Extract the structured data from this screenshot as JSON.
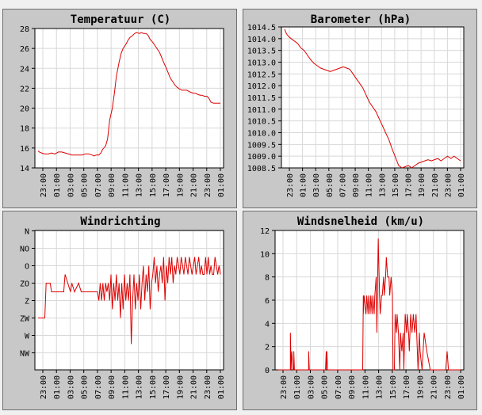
{
  "chart_data": [
    {
      "type": "line",
      "title": "Temperatuur (C)",
      "xticks": [
        "23:00",
        "01:00",
        "03:00",
        "05:00",
        "07:00",
        "09:00",
        "11:00",
        "13:00",
        "15:00",
        "17:00",
        "19:00",
        "21:00",
        "23:00",
        "01:00"
      ],
      "yticks": [
        "14",
        "16",
        "18",
        "20",
        "22",
        "24",
        "26",
        "28"
      ],
      "ylim": [
        14,
        28
      ],
      "grid": true,
      "series": [
        {
          "color": "#dd0000",
          "x": [
            0,
            0.2,
            0.5,
            1,
            1.5,
            2,
            2.5,
            3,
            3.5,
            4,
            4.5,
            5,
            5.5,
            6,
            6.5,
            7,
            7.5,
            8,
            8.3,
            8.6,
            9,
            9.3,
            9.6,
            10,
            10.3,
            10.6,
            11,
            11.3,
            11.6,
            12,
            12.3,
            12.6,
            13,
            13.3,
            13.6,
            14,
            14.3,
            14.6,
            15,
            15.3,
            15.6,
            16,
            16.3,
            16.6,
            17,
            17.3,
            17.6,
            18,
            18.3,
            18.6,
            19,
            19.3,
            19.6,
            20,
            20.3,
            20.6,
            21,
            21.3,
            21.6,
            22,
            22.3,
            22.6,
            23,
            23.3,
            23.6,
            24,
            24.3,
            24.6,
            25,
            25.3,
            25.6,
            26,
            26.3,
            26.6,
            27
          ],
          "values": [
            15.7,
            15.6,
            15.5,
            15.4,
            15.4,
            15.5,
            15.4,
            15.6,
            15.6,
            15.5,
            15.4,
            15.3,
            15.3,
            15.3,
            15.3,
            15.4,
            15.4,
            15.3,
            15.2,
            15.3,
            15.3,
            15.5,
            15.9,
            16.2,
            16.9,
            18.8,
            20.0,
            21.5,
            23.2,
            24.6,
            25.5,
            26.0,
            26.4,
            26.8,
            27.1,
            27.3,
            27.5,
            27.6,
            27.5,
            27.6,
            27.5,
            27.5,
            27.3,
            26.9,
            26.6,
            26.3,
            26.0,
            25.6,
            25.1,
            24.6,
            24.0,
            23.5,
            23.0,
            22.6,
            22.3,
            22.1,
            21.9,
            21.8,
            21.8,
            21.8,
            21.7,
            21.6,
            21.5,
            21.5,
            21.4,
            21.3,
            21.3,
            21.2,
            21.2,
            21.0,
            20.6,
            20.5,
            20.5,
            20.5,
            20.5
          ]
        }
      ]
    },
    {
      "type": "line",
      "title": "Barometer (hPa)",
      "xticks": [
        "23:00",
        "01:00",
        "03:00",
        "05:00",
        "07:00",
        "09:00",
        "11:00",
        "13:00",
        "15:00",
        "17:00",
        "19:00",
        "21:00",
        "23:00",
        "01:00"
      ],
      "yticks": [
        "1008.5",
        "1009.0",
        "1009.5",
        "1010.0",
        "1010.5",
        "1011.0",
        "1011.5",
        "1012.0",
        "1012.5",
        "1013.0",
        "1013.5",
        "1014.0",
        "1014.5"
      ],
      "ylim": [
        1008.5,
        1014.5
      ],
      "grid": true,
      "series": [
        {
          "color": "#dd0000",
          "x": [
            0,
            0.3,
            0.6,
            1,
            1.5,
            2,
            2.5,
            3,
            3.5,
            4,
            4.5,
            5,
            5.5,
            6,
            6.5,
            7,
            7.5,
            8,
            8.5,
            9,
            9.5,
            10,
            10.5,
            11,
            11.5,
            12,
            12.5,
            13,
            13.5,
            14,
            14.5,
            15,
            15.5,
            16,
            16.5,
            17,
            17.5,
            18,
            18.5,
            19,
            19.5,
            20,
            20.5,
            21,
            21.5,
            22,
            22.5,
            23,
            23.5,
            24,
            24.5,
            25,
            25.5,
            26,
            26.5,
            27
          ],
          "values": [
            1014.4,
            1014.2,
            1014.1,
            1014.0,
            1013.9,
            1013.8,
            1013.6,
            1013.5,
            1013.3,
            1013.1,
            1012.95,
            1012.85,
            1012.75,
            1012.7,
            1012.65,
            1012.6,
            1012.65,
            1012.7,
            1012.75,
            1012.8,
            1012.75,
            1012.7,
            1012.5,
            1012.3,
            1012.1,
            1011.9,
            1011.6,
            1011.3,
            1011.1,
            1010.9,
            1010.6,
            1010.3,
            1010.0,
            1009.7,
            1009.3,
            1008.95,
            1008.6,
            1008.5,
            1008.55,
            1008.6,
            1008.5,
            1008.6,
            1008.7,
            1008.75,
            1008.8,
            1008.85,
            1008.8,
            1008.85,
            1008.9,
            1008.8,
            1008.9,
            1009.0,
            1008.9,
            1009.0,
            1008.9,
            1008.8
          ]
        }
      ]
    },
    {
      "type": "line",
      "title": "Windrichting",
      "xticks": [
        "23:00",
        "01:00",
        "03:00",
        "05:00",
        "07:00",
        "09:00",
        "11:00",
        "13:00",
        "15:00",
        "17:00",
        "19:00",
        "21:00",
        "23:00",
        "01:00"
      ],
      "yticks": [
        "N",
        "NO",
        "O",
        "ZO",
        "Z",
        "ZW",
        "W",
        "NW"
      ],
      "ylim": [
        0,
        8
      ],
      "invert_y": true,
      "grid": true,
      "series": [
        {
          "color": "#dd0000",
          "x": [
            0,
            1,
            1.2,
            1.8,
            2,
            2.4,
            3,
            3.4,
            3.8,
            4,
            4.4,
            4.8,
            5,
            5.4,
            6,
            6.4,
            7,
            7.4,
            8,
            8.2,
            8.5,
            8.8,
            9,
            9.2,
            9.4,
            9.6,
            9.8,
            10,
            10.2,
            10.4,
            10.6,
            10.8,
            11,
            11.2,
            11.4,
            11.6,
            11.8,
            12,
            12.2,
            12.4,
            12.6,
            12.8,
            13,
            13.2,
            13.4,
            13.6,
            13.8,
            14,
            14.2,
            14.4,
            14.6,
            14.8,
            15,
            15.2,
            15.4,
            15.6,
            15.8,
            16,
            16.2,
            16.4,
            16.6,
            16.8,
            17,
            17.2,
            17.4,
            17.6,
            17.8,
            18,
            18.2,
            18.4,
            18.6,
            18.8,
            19,
            19.2,
            19.4,
            19.6,
            19.8,
            20,
            20.2,
            20.4,
            20.6,
            20.8,
            21,
            21.2,
            21.4,
            21.6,
            21.8,
            22,
            22.2,
            22.4,
            22.6,
            22.8,
            23,
            23.2,
            23.4,
            23.6,
            23.8,
            24,
            24.2,
            24.4,
            24.6,
            24.8,
            25,
            25.2,
            25.4,
            25.6,
            25.8,
            26,
            26.2,
            26.4,
            26.6,
            26.8,
            27
          ],
          "values": [
            5,
            5,
            3,
            3,
            3.5,
            3.5,
            3.5,
            3.5,
            3.5,
            2.5,
            3,
            3.5,
            3,
            3.5,
            3,
            3.5,
            3.5,
            3.5,
            3.5,
            3.5,
            3.5,
            3.5,
            4,
            3,
            4,
            3,
            4,
            3,
            3.5,
            3,
            4,
            2.5,
            4.5,
            3,
            4,
            2.5,
            4,
            3,
            5,
            3,
            4.5,
            2.5,
            4,
            3,
            4,
            2.5,
            6.5,
            4,
            2.5,
            4.5,
            3,
            4,
            2.5,
            4.5,
            3,
            2,
            4,
            2.5,
            3.5,
            2,
            4.5,
            3,
            2.5,
            1.5,
            3,
            2,
            3.5,
            2.5,
            2,
            3,
            1.5,
            4,
            2,
            3,
            1.5,
            2.5,
            1.5,
            3,
            2,
            2.5,
            1.5,
            2,
            2.5,
            1.5,
            2,
            2.5,
            1.5,
            2,
            2.5,
            1.5,
            2,
            2.5,
            2,
            1.5,
            2.5,
            2,
            1.5,
            2.5,
            2,
            2.5,
            2.5,
            1.5,
            2.5,
            1.5,
            2.5,
            2,
            2.5,
            2.5,
            1.5,
            2,
            2.5,
            2,
            2.5
          ]
        }
      ]
    },
    {
      "type": "line",
      "title": "Windsnelheid (km/u)",
      "xticks": [
        "23:00",
        "01:00",
        "03:00",
        "05:00",
        "07:00",
        "09:00",
        "11:00",
        "13:00",
        "15:00",
        "17:00",
        "19:00",
        "21:00",
        "23:00",
        "01:00"
      ],
      "yticks": [
        "0",
        "2",
        "4",
        "6",
        "8",
        "10",
        "12"
      ],
      "ylim": [
        0,
        12
      ],
      "grid": true,
      "series": [
        {
          "color": "#dd0000",
          "x": [
            0,
            1.8,
            1.8,
            1.9,
            2,
            2.2,
            2.3,
            2.3,
            2.4,
            4.5,
            4.5,
            4.6,
            4.7,
            7,
            7.1,
            7.1,
            7.2,
            7.3,
            12.5,
            12.6,
            12.6,
            12.7,
            13,
            13.1,
            13.3,
            13.4,
            13.6,
            13.7,
            13.9,
            14,
            14.2,
            14.3,
            14.5,
            14.6,
            14.8,
            15,
            15.1,
            15.3,
            15.4,
            15.6,
            15.7,
            15.9,
            16,
            16.2,
            16.4,
            16.5,
            16.7,
            16.9,
            17,
            17.2,
            17.3,
            17.5,
            17.6,
            17.8,
            18,
            18.1,
            18.3,
            18.5,
            18.6,
            18.8,
            19,
            19.1,
            19.3,
            19.4,
            19.6,
            19.8,
            20,
            20.2,
            20.4,
            20.5,
            20.7,
            20.9,
            21,
            21.3,
            21.6,
            22,
            22.5,
            22.8,
            23,
            23.2,
            23.5,
            24,
            24.4,
            24.8,
            25,
            25.2,
            25.5,
            25.8,
            26,
            26.2,
            26.5,
            26.8,
            27
          ],
          "values": [
            0,
            0,
            3.2,
            0,
            1.6,
            0,
            0,
            1.6,
            0,
            0,
            1.6,
            0,
            0,
            0,
            1.6,
            0,
            1.6,
            0,
            0,
            6.4,
            4.8,
            6.4,
            4.8,
            6.4,
            4.8,
            6.4,
            4.8,
            6.4,
            4.8,
            6.4,
            4.8,
            6.4,
            8,
            3.2,
            11.3,
            6.4,
            4.8,
            6.4,
            6.4,
            8,
            6.4,
            8,
            9.7,
            8,
            8,
            6.4,
            8,
            6.4,
            0,
            0,
            4.8,
            3.2,
            4.8,
            3.2,
            0,
            3.2,
            1.6,
            3.2,
            0,
            4.8,
            3.2,
            4.8,
            3.2,
            1.6,
            4.8,
            3.2,
            4.8,
            3.2,
            4.8,
            3.2,
            0,
            3.2,
            1.6,
            0,
            3.2,
            1.6,
            0,
            0,
            0,
            0,
            0,
            0,
            0,
            0,
            1.6,
            0,
            0,
            0,
            0,
            0,
            0,
            0,
            0
          ]
        }
      ]
    }
  ]
}
